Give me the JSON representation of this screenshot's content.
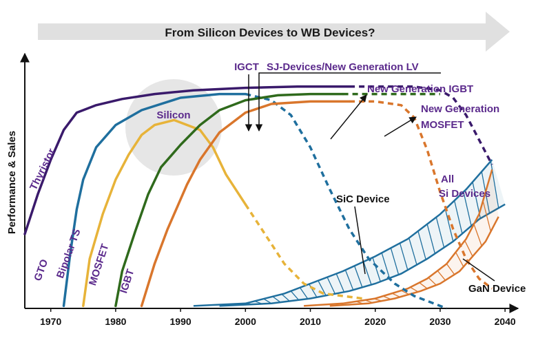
{
  "chart_data": {
    "type": "line",
    "title": "From Silicon Devices to WB Devices?",
    "ylabel": "Performance & Sales",
    "xlim": [
      1966,
      2042
    ],
    "ylim": [
      0,
      100
    ],
    "x_ticks": [
      1970,
      1980,
      1990,
      2000,
      2010,
      2020,
      2030,
      2040
    ],
    "colors": {
      "thyristor": "#3a1a6b",
      "gto": "#1f6f9e",
      "bipolar": "#e7b339",
      "mosfet": "#2f6a1c",
      "igbt": "#d9762c",
      "sic": "#1f6f9e",
      "gan": "#d9762c",
      "label": "#5b2a8c",
      "arrow_band": "#e0e0e0",
      "silicon_circle": "#e6e6e6"
    },
    "series": [
      {
        "name": "Thyristor",
        "key": "thyristor",
        "solid": [
          [
            1966,
            30
          ],
          [
            1968,
            46
          ],
          [
            1970,
            60
          ],
          [
            1972,
            72
          ],
          [
            1974,
            79
          ],
          [
            1977,
            82
          ],
          [
            1981,
            84.5
          ],
          [
            1986,
            86.5
          ],
          [
            1992,
            88
          ],
          [
            2000,
            89
          ],
          [
            2008,
            89.5
          ],
          [
            2016,
            89.5
          ]
        ],
        "dashed": [
          [
            2016,
            89.5
          ],
          [
            2022,
            89.5
          ],
          [
            2026,
            89.5
          ],
          [
            2030,
            88
          ],
          [
            2032,
            85
          ],
          [
            2034,
            78
          ],
          [
            2036,
            68
          ],
          [
            2038,
            58
          ]
        ]
      },
      {
        "name": "GTO",
        "key": "gto",
        "solid": [
          [
            1972,
            1
          ],
          [
            1973,
            22
          ],
          [
            1974,
            40
          ],
          [
            1975,
            52
          ],
          [
            1977,
            65
          ],
          [
            1980,
            74
          ],
          [
            1984,
            80
          ],
          [
            1990,
            85
          ],
          [
            1996,
            86.5
          ],
          [
            2000,
            86.5
          ]
        ],
        "dashed": [
          [
            2000,
            86.5
          ],
          [
            2004,
            84
          ],
          [
            2007,
            78
          ],
          [
            2010,
            65
          ],
          [
            2013,
            48
          ],
          [
            2016,
            32
          ],
          [
            2019,
            20
          ],
          [
            2023,
            10
          ],
          [
            2026,
            5
          ],
          [
            2031,
            0
          ]
        ]
      },
      {
        "name": "Bipolar TS",
        "key": "bipolar",
        "solid": [
          [
            1975,
            1
          ],
          [
            1976,
            20
          ],
          [
            1978,
            38
          ],
          [
            1980,
            52
          ],
          [
            1982,
            62
          ],
          [
            1984,
            70
          ],
          [
            1986,
            74
          ],
          [
            1989,
            76
          ],
          [
            1993,
            72
          ],
          [
            1995,
            65
          ],
          [
            1997,
            54
          ],
          [
            2000,
            42
          ]
        ],
        "dashed": [
          [
            2000,
            42
          ],
          [
            2003,
            30
          ],
          [
            2006,
            18
          ],
          [
            2009,
            10
          ],
          [
            2012,
            6
          ],
          [
            2018,
            4
          ]
        ]
      },
      {
        "name": "MOSFET",
        "key": "mosfet",
        "solid": [
          [
            1980,
            1
          ],
          [
            1981,
            15
          ],
          [
            1983,
            31
          ],
          [
            1985,
            46
          ],
          [
            1987,
            57
          ],
          [
            1990,
            66
          ],
          [
            1993,
            74
          ],
          [
            1996,
            80
          ],
          [
            2000,
            84
          ],
          [
            2005,
            86
          ],
          [
            2010,
            86.5
          ],
          [
            2015,
            86.5
          ]
        ],
        "dashed": [
          [
            2015,
            86.5
          ],
          [
            2020,
            86.5
          ],
          [
            2025,
            86.5
          ],
          [
            2030,
            86.5
          ]
        ]
      },
      {
        "name": "IGBT",
        "key": "igbt",
        "solid": [
          [
            1984,
            1
          ],
          [
            1986,
            18
          ],
          [
            1988,
            32
          ],
          [
            1991,
            50
          ],
          [
            1993,
            60
          ],
          [
            1996,
            71
          ],
          [
            2000,
            79
          ],
          [
            2004,
            82.5
          ],
          [
            2010,
            83.5
          ],
          [
            2016,
            83.5
          ]
        ],
        "dashed": [
          [
            2016,
            83.5
          ],
          [
            2020,
            83.5
          ],
          [
            2024,
            82
          ],
          [
            2026,
            77
          ],
          [
            2028,
            64
          ],
          [
            2030,
            47
          ],
          [
            2032,
            32
          ],
          [
            2034,
            20
          ],
          [
            2036,
            12
          ],
          [
            2038,
            8
          ]
        ]
      },
      {
        "name": "SiC Device",
        "key": "sic",
        "upper": [
          [
            1992,
            1
          ],
          [
            2000,
            2
          ],
          [
            2006,
            6
          ],
          [
            2010,
            10
          ],
          [
            2015,
            15
          ],
          [
            2020,
            21
          ],
          [
            2025,
            28
          ],
          [
            2030,
            38
          ],
          [
            2034,
            48
          ],
          [
            2038,
            60
          ]
        ],
        "lower": [
          [
            1996,
            1
          ],
          [
            2004,
            2
          ],
          [
            2010,
            4
          ],
          [
            2016,
            7
          ],
          [
            2020,
            10
          ],
          [
            2024,
            14
          ],
          [
            2028,
            20
          ],
          [
            2032,
            27
          ],
          [
            2036,
            36
          ],
          [
            2040,
            42
          ]
        ]
      },
      {
        "name": "GaN Device",
        "key": "gan",
        "upper": [
          [
            2009,
            1
          ],
          [
            2015,
            2
          ],
          [
            2020,
            4
          ],
          [
            2025,
            8
          ],
          [
            2028,
            12
          ],
          [
            2031,
            18
          ],
          [
            2034,
            28
          ],
          [
            2036,
            38
          ],
          [
            2038,
            56
          ]
        ],
        "lower": [
          [
            2013,
            1
          ],
          [
            2019,
            2
          ],
          [
            2023,
            4
          ],
          [
            2027,
            7
          ],
          [
            2030,
            10
          ],
          [
            2033,
            15
          ],
          [
            2035,
            21
          ],
          [
            2037,
            27
          ],
          [
            2039,
            37
          ]
        ]
      }
    ],
    "annotations": {
      "arrow_title": "From Silicon Devices to WB Devices?",
      "silicon": "Silicon",
      "igct": "IGCT",
      "sj": "SJ-Devices/New Generation LV",
      "new_igbt": "New Generation IGBT",
      "new_mosfet_1": "New Generation",
      "new_mosfet_2": "MOSFET",
      "all_si_1": "All",
      "all_si_2": "Si Devices",
      "sic": "SiC Device",
      "gan": "GaN Device"
    },
    "series_labels": {
      "thyristor": "Thyristor",
      "gto": "GTO",
      "bipolar": "Bipolar TS",
      "mosfet": "MOSFET",
      "igbt": "IGBT"
    }
  }
}
